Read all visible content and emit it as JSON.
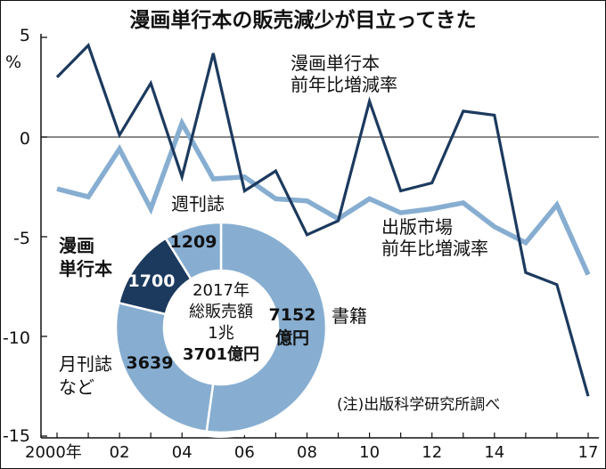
{
  "chart_data": [
    {
      "type": "line",
      "title": "漫画単行本の販売減少が目立ってきた",
      "ylabel": "%",
      "ylim": [
        -15,
        5
      ],
      "y_ticks": [
        "5",
        "0",
        "-5",
        "-10",
        "-15"
      ],
      "x_tick_labels": [
        "2000年",
        "02",
        "04",
        "06",
        "08",
        "10",
        "12",
        "14",
        "17"
      ],
      "x": [
        2000,
        2001,
        2002,
        2003,
        2004,
        2005,
        2006,
        2007,
        2008,
        2009,
        2010,
        2011,
        2012,
        2013,
        2014,
        2015,
        2016,
        2017
      ],
      "series": [
        {
          "name": "漫画単行本前年比増減率",
          "label_lines": [
            "漫画単行本",
            "前年比増減率"
          ],
          "color": "#1c3a5e",
          "values": [
            3.0,
            4.6,
            0.1,
            2.7,
            -2.0,
            4.2,
            -2.7,
            -1.7,
            -4.9,
            -4.2,
            1.8,
            -2.7,
            -2.3,
            1.3,
            1.1,
            -6.8,
            -7.4,
            -13.0
          ]
        },
        {
          "name": "出版市場前年比増減率",
          "label_lines": [
            "出版市場",
            "前年比増減率"
          ],
          "color": "#87aed1",
          "values": [
            -2.6,
            -3.0,
            -0.6,
            -3.6,
            0.7,
            -2.1,
            -2.0,
            -3.1,
            -3.2,
            -4.1,
            -3.1,
            -3.8,
            -3.6,
            -3.3,
            -4.5,
            -5.3,
            -3.4,
            -6.9
          ]
        }
      ]
    },
    {
      "type": "pie",
      "center_text": [
        "2017年",
        "総販売額",
        "1兆",
        "3701億円"
      ],
      "slices": [
        {
          "name": "書籍",
          "label_lines": [
            "書籍"
          ],
          "value": 7152,
          "value_text": "7152",
          "unit_text": "億円",
          "color": "#87aed1"
        },
        {
          "name": "月刊誌など",
          "label_lines": [
            "月刊誌",
            "など"
          ],
          "value": 3639,
          "value_text": "3639",
          "color": "#87aed1"
        },
        {
          "name": "漫画単行本",
          "label_lines": [
            "漫画",
            "単行本"
          ],
          "value": 1700,
          "value_text": "1700",
          "color": "#1c3a5e"
        },
        {
          "name": "週刊誌",
          "label_lines": [
            "週刊誌"
          ],
          "value": 1209,
          "value_text": "1209",
          "color": "#87aed1"
        }
      ]
    }
  ],
  "note": "(注)出版科学研究所調べ"
}
